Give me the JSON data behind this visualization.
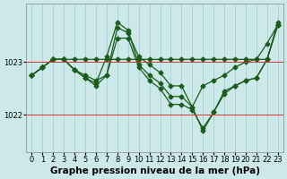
{
  "title": "Graphe pression niveau de la mer (hPa)",
  "xlabel_hours": [
    0,
    1,
    2,
    3,
    4,
    5,
    6,
    7,
    8,
    9,
    10,
    11,
    12,
    13,
    14,
    15,
    16,
    17,
    18,
    19,
    20,
    21,
    22,
    23
  ],
  "background_color": "#cce8e8",
  "grid_color": "#aad0d0",
  "line_color": "#1a5c1a",
  "ylim": [
    1021.3,
    1024.1
  ],
  "yticks": [
    1022,
    1023
  ],
  "series": [
    [
      1022.75,
      1022.9,
      1023.05,
      1023.05,
      1023.05,
      1023.05,
      1023.05,
      1023.05,
      1023.05,
      1023.05,
      1023.05,
      1023.05,
      1023.05,
      1023.05,
      1023.05,
      1023.05,
      1023.05,
      1023.05,
      1023.05,
      1023.05,
      1023.05,
      1023.05,
      1023.05,
      1023.7
    ],
    [
      1022.75,
      1022.9,
      1023.05,
      1023.05,
      1022.85,
      1022.75,
      1022.65,
      1022.75,
      1023.65,
      1023.55,
      1023.1,
      1022.95,
      1022.8,
      1022.55,
      1022.55,
      1022.15,
      1022.55,
      1022.65,
      1022.75,
      1022.9,
      1023.0,
      1023.05,
      1023.35,
      1023.7
    ],
    [
      1022.75,
      1022.9,
      1023.05,
      1023.05,
      1022.85,
      1022.7,
      1022.6,
      1023.1,
      1023.75,
      1023.6,
      1022.95,
      1022.75,
      1022.6,
      1022.35,
      1022.35,
      1022.15,
      1021.7,
      1022.05,
      1022.45,
      1022.55,
      1022.65,
      1022.7,
      1023.05,
      1023.75
    ],
    [
      1022.75,
      1022.9,
      1023.05,
      1023.05,
      1022.85,
      1022.7,
      1022.55,
      1022.75,
      1023.45,
      1023.45,
      1022.9,
      1022.65,
      1022.5,
      1022.2,
      1022.2,
      1022.1,
      1021.75,
      1022.05,
      1022.4,
      1022.55,
      1022.65,
      1022.7,
      1023.05,
      1023.7
    ]
  ],
  "marker": "D",
  "markersize": 2.5,
  "linewidth": 0.9,
  "title_fontsize": 7.5,
  "tick_fontsize": 6.0
}
